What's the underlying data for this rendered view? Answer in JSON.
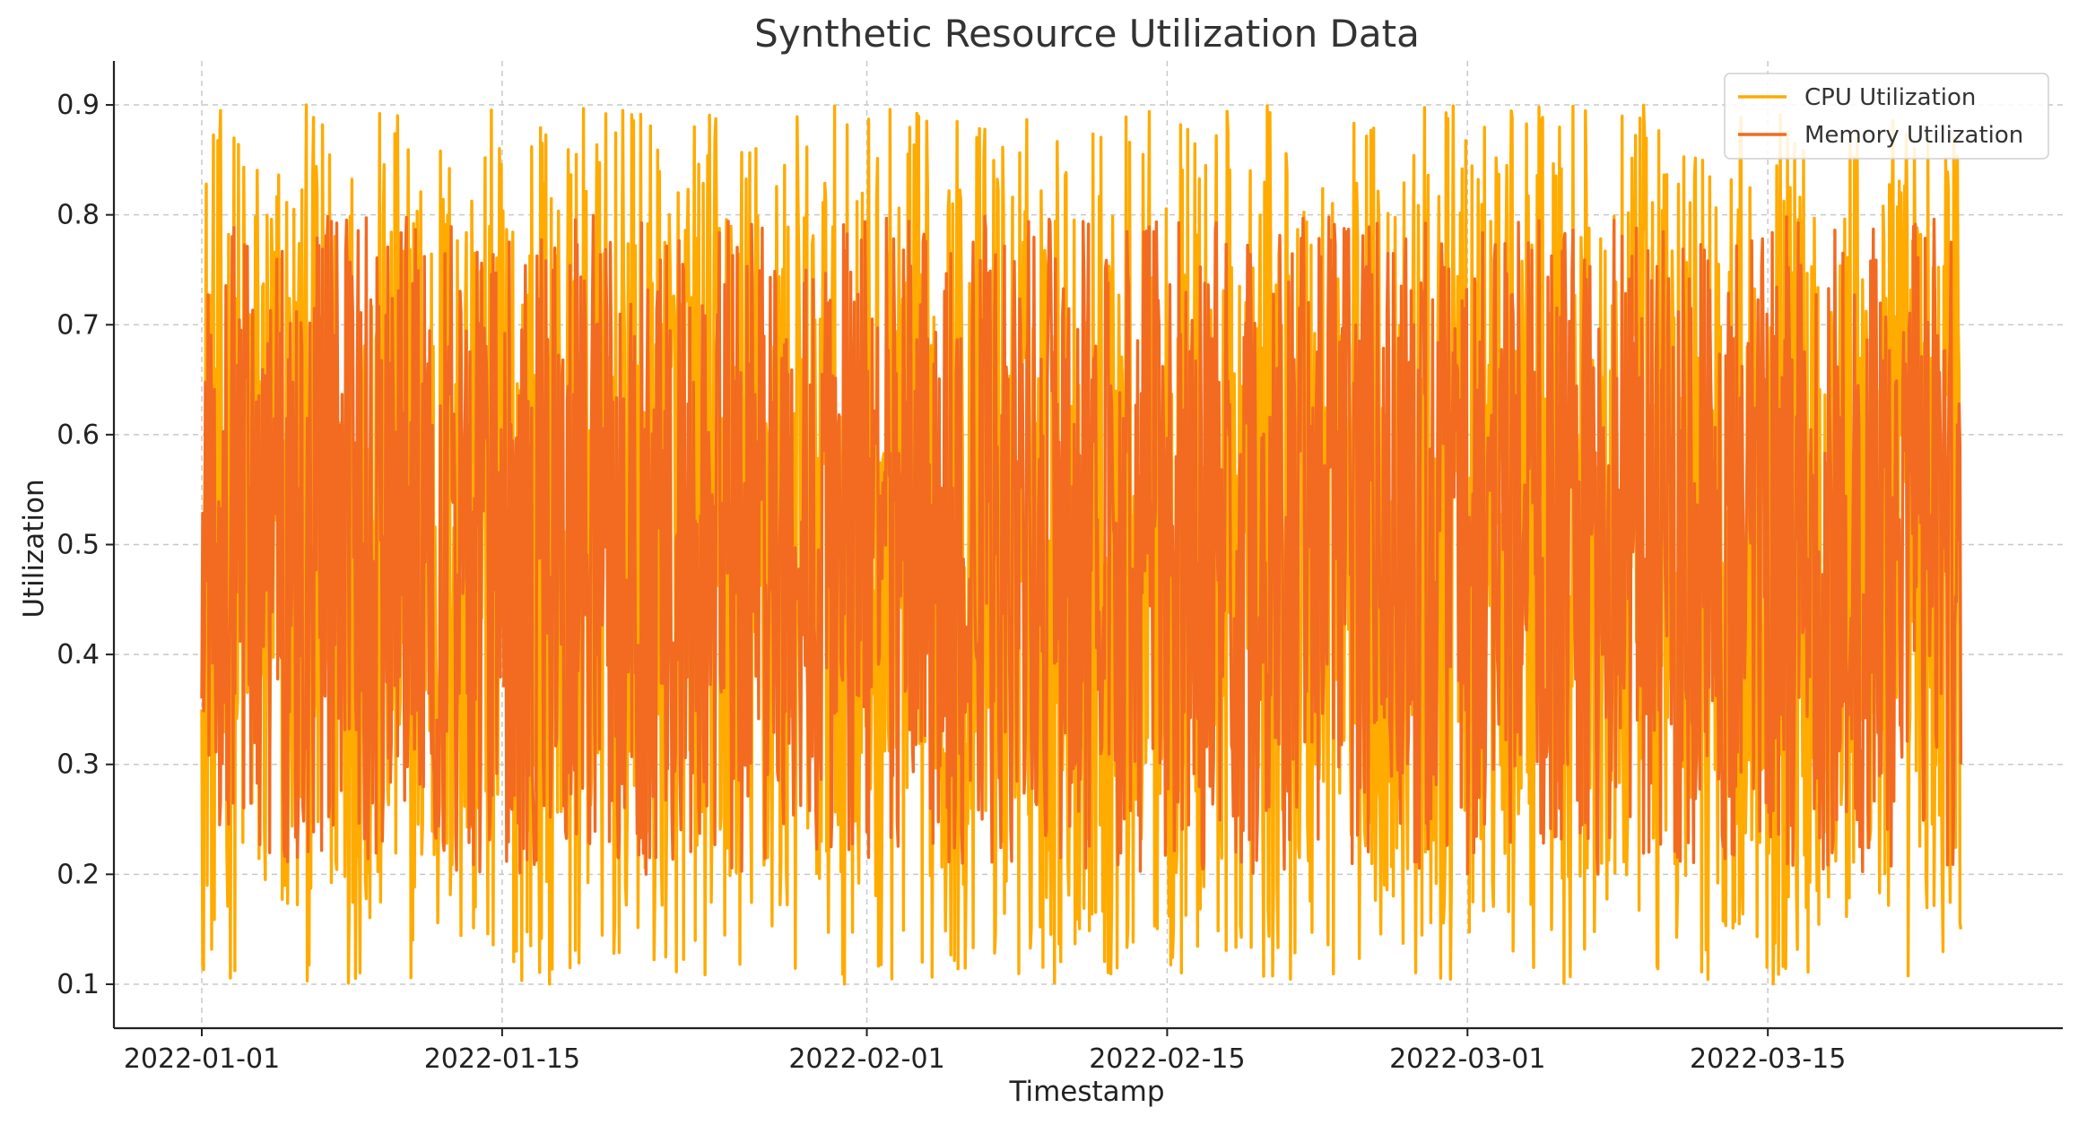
{
  "chart_data": {
    "type": "line",
    "title": "Synthetic Resource Utilization Data",
    "xlabel": "Timestamp",
    "ylabel": "Utilization",
    "x_range": [
      "2022-01-01",
      "2022-03-24"
    ],
    "x_ticks": [
      "2022-01-01",
      "2022-01-15",
      "2022-02-01",
      "2022-02-15",
      "2022-03-01",
      "2022-03-15"
    ],
    "y_ticks": [
      0.1,
      0.2,
      0.3,
      0.4,
      0.5,
      0.6,
      0.7,
      0.8,
      0.9
    ],
    "ylim": [
      0.06,
      0.94
    ],
    "grid": true,
    "legend_position": "top-right",
    "series": [
      {
        "name": "CPU Utilization",
        "color": "#FFAB00",
        "value_range": [
          0.1,
          0.9
        ],
        "start": 0.35,
        "end": 0.15
      },
      {
        "name": "Memory Utilization",
        "color": "#F26B21",
        "value_range": [
          0.2,
          0.8
        ],
        "start": 0.36,
        "end": 0.3
      }
    ]
  }
}
